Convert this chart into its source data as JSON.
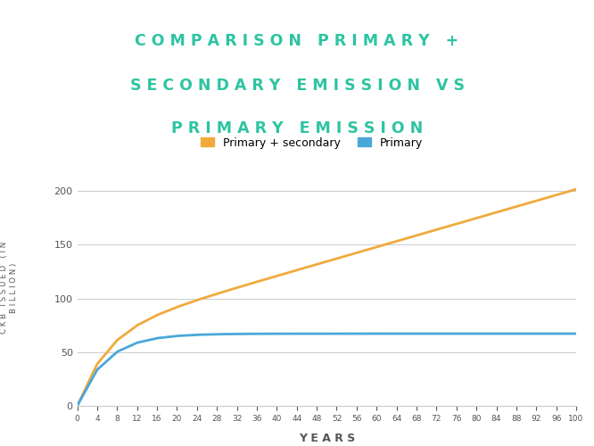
{
  "title_line1": "C O M P A R I S O N   P R I M A R Y   +",
  "title_line2": "S E C O N D A R Y   E M I S S I O N   V S",
  "title_line3": "P R I M A R Y   E M I S S I O N",
  "title_color": "#2dc4a2",
  "title_bg_color": "#dde4ea",
  "chart_bg_color": "#ffffff",
  "ylabel_line1": "C K B   I S S U E D   ( I N",
  "ylabel_line2": "B I L L I O N )",
  "xlabel": "Y E A R S",
  "legend_primary_secondary": "Primary + secondary",
  "legend_primary": "Primary",
  "color_primary_secondary": "#f0aa3c",
  "color_primary": "#4aa8d8",
  "ylim": [
    0,
    220
  ],
  "xlim": [
    0,
    100
  ],
  "yticks": [
    0,
    50,
    100,
    150,
    200
  ],
  "xticks": [
    0,
    4,
    8,
    12,
    16,
    20,
    24,
    28,
    32,
    36,
    40,
    44,
    48,
    52,
    56,
    60,
    64,
    68,
    72,
    76,
    80,
    84,
    88,
    92,
    96,
    100
  ],
  "grid_color": "#cccccc",
  "tick_color": "#555555",
  "secondary_issuance_per_year": 1.344,
  "primary_period_issuance": 33.6,
  "halving_period": 4
}
